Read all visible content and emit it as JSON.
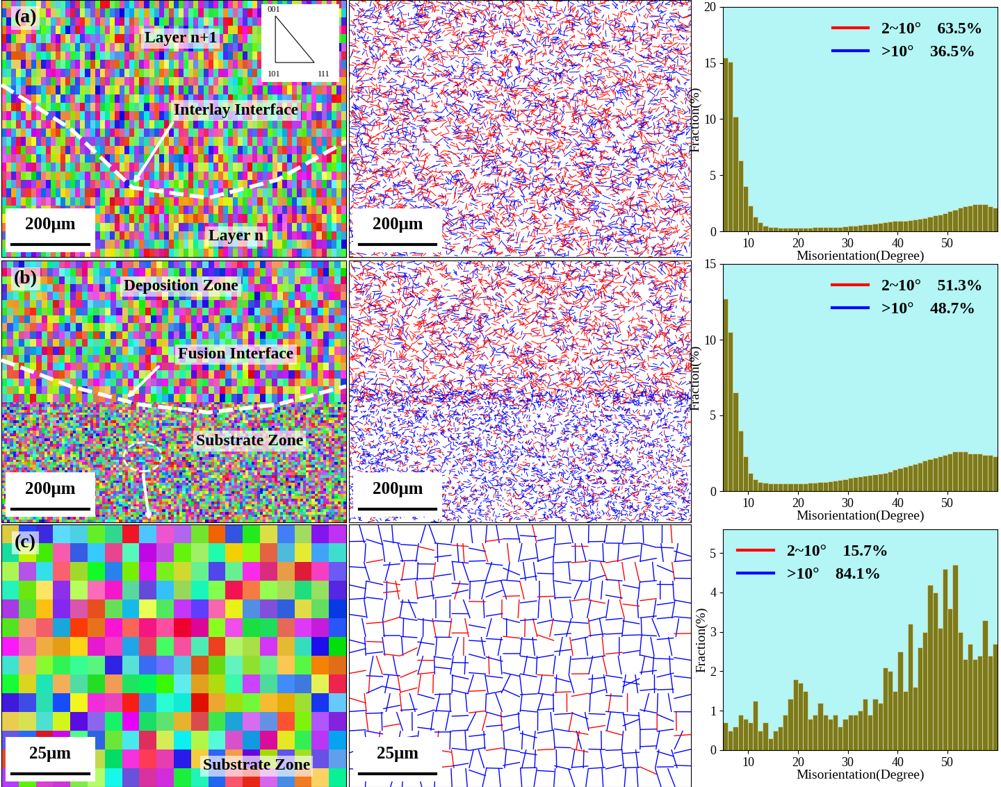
{
  "chart_data": [
    {
      "type": "histogram",
      "x_label": "Misorientation(Degree)",
      "y_label": "Fraction(%)",
      "bins": [
        5,
        6,
        7,
        8,
        9,
        10,
        11,
        12,
        13,
        14,
        15,
        16,
        17,
        18,
        19,
        20,
        21,
        22,
        23,
        24,
        25,
        26,
        27,
        28,
        29,
        30,
        31,
        32,
        33,
        34,
        35,
        36,
        37,
        38,
        39,
        40,
        41,
        42,
        43,
        44,
        45,
        46,
        47,
        48,
        49,
        50,
        51,
        52,
        53,
        54,
        55,
        56,
        57,
        58,
        59,
        60
      ],
      "counts": [
        15.5,
        15.1,
        10.2,
        6.3,
        4.0,
        2.3,
        1.3,
        0.8,
        0.5,
        0.4,
        0.35,
        0.3,
        0.3,
        0.3,
        0.3,
        0.3,
        0.3,
        0.3,
        0.35,
        0.35,
        0.35,
        0.4,
        0.4,
        0.4,
        0.45,
        0.5,
        0.5,
        0.55,
        0.6,
        0.65,
        0.7,
        0.75,
        0.8,
        0.85,
        0.9,
        0.9,
        0.95,
        1.0,
        1.05,
        1.1,
        1.2,
        1.3,
        1.4,
        1.5,
        1.6,
        1.8,
        1.9,
        2.1,
        2.2,
        2.3,
        2.4,
        2.4,
        2.4,
        2.2,
        2.1
      ],
      "color": "#7d7a1c",
      "xlim": [
        5,
        60
      ],
      "xticks": [
        10,
        20,
        30,
        40,
        50
      ],
      "ylim": [
        0,
        20
      ],
      "yticks": [
        0,
        5,
        10,
        15,
        20
      ],
      "legend": "upper right",
      "series": [
        {
          "name": "2~10°",
          "color": "#ff0000",
          "label": "63.5%"
        },
        {
          "name": ">10°",
          "color": "#0000ff",
          "label": "36.5%"
        }
      ]
    },
    {
      "type": "histogram",
      "x_label": "Misorientation(Degree)",
      "y_label": "Fraction(%)",
      "bins": [
        5,
        6,
        7,
        8,
        9,
        10,
        11,
        12,
        13,
        14,
        15,
        16,
        17,
        18,
        19,
        20,
        21,
        22,
        23,
        24,
        25,
        26,
        27,
        28,
        29,
        30,
        31,
        32,
        33,
        34,
        35,
        36,
        37,
        38,
        39,
        40,
        41,
        42,
        43,
        44,
        45,
        46,
        47,
        48,
        49,
        50,
        51,
        52,
        53,
        54,
        55,
        56,
        57,
        58,
        59,
        60
      ],
      "counts": [
        12.7,
        10.5,
        6.5,
        4.0,
        2.3,
        1.2,
        0.8,
        0.6,
        0.55,
        0.5,
        0.5,
        0.5,
        0.5,
        0.5,
        0.5,
        0.5,
        0.5,
        0.55,
        0.55,
        0.6,
        0.6,
        0.65,
        0.7,
        0.75,
        0.8,
        0.85,
        0.9,
        0.95,
        1.0,
        1.05,
        1.1,
        1.15,
        1.2,
        1.3,
        1.4,
        1.5,
        1.6,
        1.7,
        1.8,
        1.9,
        2.0,
        2.1,
        2.2,
        2.3,
        2.4,
        2.5,
        2.6,
        2.6,
        2.6,
        2.5,
        2.5,
        2.5,
        2.4,
        2.4,
        2.3
      ],
      "color": "#7d7a1c",
      "xlim": [
        5,
        60
      ],
      "xticks": [
        10,
        20,
        30,
        40,
        50
      ],
      "ylim": [
        0,
        15
      ],
      "yticks": [
        0,
        5,
        10,
        15
      ],
      "legend": "upper right",
      "series": [
        {
          "name": "2~10°",
          "color": "#ff0000",
          "label": "51.3%"
        },
        {
          "name": ">10°",
          "color": "#0000ff",
          "label": "48.7%"
        }
      ]
    },
    {
      "type": "histogram",
      "x_label": "Misorientation(Degree)",
      "y_label": "Fraction(%)",
      "bins": [
        5,
        6,
        7,
        8,
        9,
        10,
        11,
        12,
        13,
        14,
        15,
        16,
        17,
        18,
        19,
        20,
        21,
        22,
        23,
        24,
        25,
        26,
        27,
        28,
        29,
        30,
        31,
        32,
        33,
        34,
        35,
        36,
        37,
        38,
        39,
        40,
        41,
        42,
        43,
        44,
        45,
        46,
        47,
        48,
        49,
        50,
        51,
        52,
        53,
        54,
        55,
        56,
        57,
        58,
        59,
        60
      ],
      "counts": [
        0.7,
        0.5,
        0.6,
        0.9,
        0.8,
        0.7,
        1.25,
        0.5,
        0.7,
        0.3,
        0.5,
        0.6,
        0.9,
        1.3,
        1.8,
        1.7,
        1.5,
        0.8,
        0.9,
        1.2,
        0.9,
        0.8,
        0.9,
        0.6,
        0.8,
        0.9,
        0.9,
        1.0,
        1.3,
        0.9,
        1.3,
        1.2,
        2.1,
        2.0,
        1.5,
        2.5,
        1.5,
        3.2,
        1.6,
        2.6,
        3.0,
        4.2,
        4.0,
        3.1,
        4.6,
        3.6,
        4.7,
        3.0,
        2.3,
        2.7,
        2.3,
        2.4,
        3.3,
        2.4,
        2.7
      ],
      "color": "#7d7a1c",
      "xlim": [
        5,
        60
      ],
      "xticks": [
        10,
        20,
        30,
        40,
        50
      ],
      "ylim": [
        0,
        5.6
      ],
      "yticks": [
        0,
        1,
        2,
        3,
        4,
        5
      ],
      "legend": "upper left",
      "series": [
        {
          "name": "2~10°",
          "color": "#ff0000",
          "label": "15.7%"
        },
        {
          "name": ">10°",
          "color": "#0000ff",
          "label": "84.1%"
        }
      ]
    }
  ],
  "maps": [
    {
      "panel": "(a)",
      "labels": [
        "Layer n+1",
        "Interlay Interface",
        "Layer n"
      ],
      "scale_bar": "200μm",
      "boundary_scale_bar": "200μm",
      "ipf_key": [
        "001",
        "101",
        "111"
      ]
    },
    {
      "panel": "(b)",
      "labels": [
        "Deposition Zone",
        "Fusion Interface",
        "Substrate Zone"
      ],
      "scale_bar": "200μm",
      "boundary_scale_bar": "200μm"
    },
    {
      "panel": "(c)",
      "labels": [
        "Substrate Zone"
      ],
      "scale_bar": "25μm",
      "boundary_scale_bar": "25μm"
    }
  ]
}
